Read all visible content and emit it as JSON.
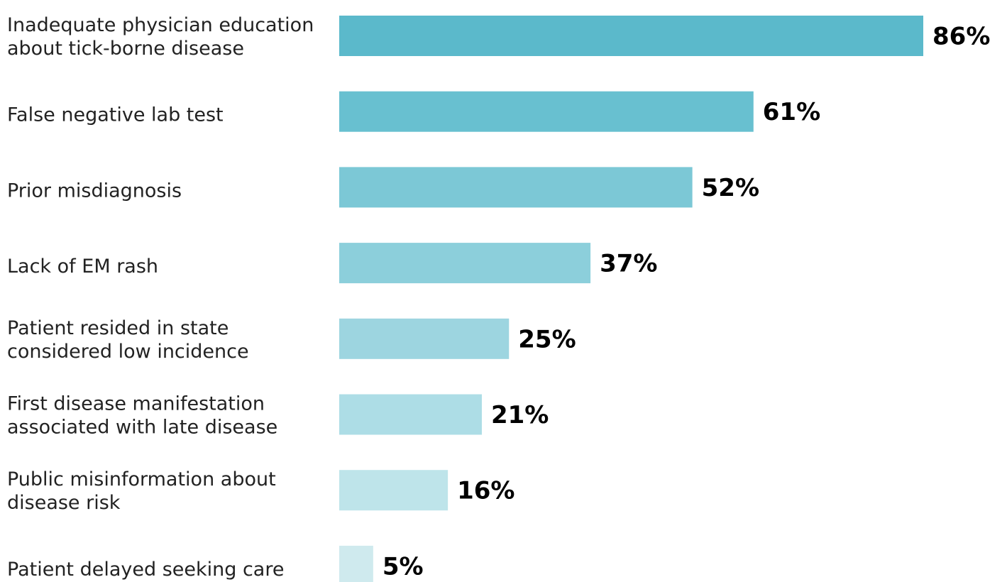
{
  "chart_data": {
    "type": "bar",
    "orientation": "horizontal",
    "title": "",
    "xlabel": "",
    "ylabel": "",
    "xlim": [
      0,
      100
    ],
    "grid": false,
    "legend": "none",
    "value_suffix": "%",
    "categories": [
      [
        "Inadequate physician education",
        "about tick-borne disease"
      ],
      [
        "False negative lab test"
      ],
      [
        "Prior misdiagnosis"
      ],
      [
        "Lack of EM rash"
      ],
      [
        "Patient resided in state",
        "considered low incidence"
      ],
      [
        "First disease manifestation",
        "associated with late disease"
      ],
      [
        "Public misinformation about",
        "disease risk"
      ],
      [
        "Patient delayed seeking care"
      ]
    ],
    "values": [
      86,
      61,
      52,
      37,
      25,
      21,
      16,
      5
    ],
    "value_labels": [
      "86%",
      "61%",
      "52%",
      "37%",
      "25%",
      "21%",
      "16%",
      "5%"
    ],
    "bar_colors": [
      "#5bb9cb",
      "#68c0d0",
      "#7cc8d6",
      "#8ccfdb",
      "#9dd5e0",
      "#addde6",
      "#bee4ea",
      "#cfeaee"
    ]
  }
}
